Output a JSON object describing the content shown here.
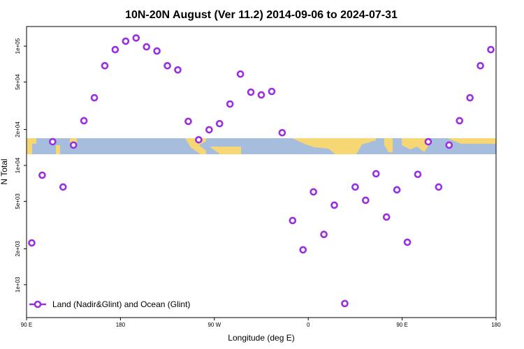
{
  "chart_data": {
    "type": "scatter",
    "title": "10N-20N August (Ver 11.2)   2014-09-06 to 2024-07-31",
    "xlabel": "Longitude (deg E)",
    "ylabel": "N Total",
    "xlim": [
      90,
      540
    ],
    "xticks": [
      {
        "value": 90,
        "label": "90 E"
      },
      {
        "value": 180,
        "label": "180"
      },
      {
        "value": 270,
        "label": "90 W"
      },
      {
        "value": 360,
        "label": "0"
      },
      {
        "value": 450,
        "label": "90 E"
      },
      {
        "value": 540,
        "label": "180"
      }
    ],
    "ylim": [
      530,
      146000
    ],
    "ylog": true,
    "yticks": [
      {
        "value": 1000,
        "label": "1e+03"
      },
      {
        "value": 2000,
        "label": "2e+03"
      },
      {
        "value": 5000,
        "label": "5e+03"
      },
      {
        "value": 10000,
        "label": "1e+04"
      },
      {
        "value": 20000,
        "label": "2e+04"
      },
      {
        "value": 50000,
        "label": "5e+04"
      },
      {
        "value": 100000,
        "label": "1e+05"
      }
    ],
    "legend": "lower left",
    "series": [
      {
        "name": "Land (Nadir&Glint) and Ocean (Glint)",
        "color": "#9a2fe0",
        "x": [
          95,
          105,
          115,
          125,
          135,
          145,
          155,
          165,
          175,
          185,
          195,
          205,
          215,
          225,
          235,
          245,
          255,
          265,
          275,
          285,
          295,
          305,
          315,
          325,
          335,
          345,
          355,
          365,
          375,
          385,
          395,
          405,
          415,
          425,
          435,
          445,
          455,
          465,
          475,
          485,
          495,
          505,
          515,
          525,
          535
        ],
        "values": [
          2240,
          8280,
          15800,
          6590,
          14800,
          23700,
          36900,
          68500,
          93500,
          110000,
          117000,
          98600,
          91000,
          68500,
          63200,
          23400,
          16400,
          19900,
          22400,
          32700,
          58300,
          41100,
          39000,
          41700,
          18800,
          3450,
          1960,
          6000,
          2640,
          4640,
          695,
          6590,
          5100,
          8510,
          3690,
          6240,
          2270,
          8420,
          15800,
          6590,
          14800,
          23700,
          36900,
          68500,
          93500
        ]
      }
    ]
  }
}
